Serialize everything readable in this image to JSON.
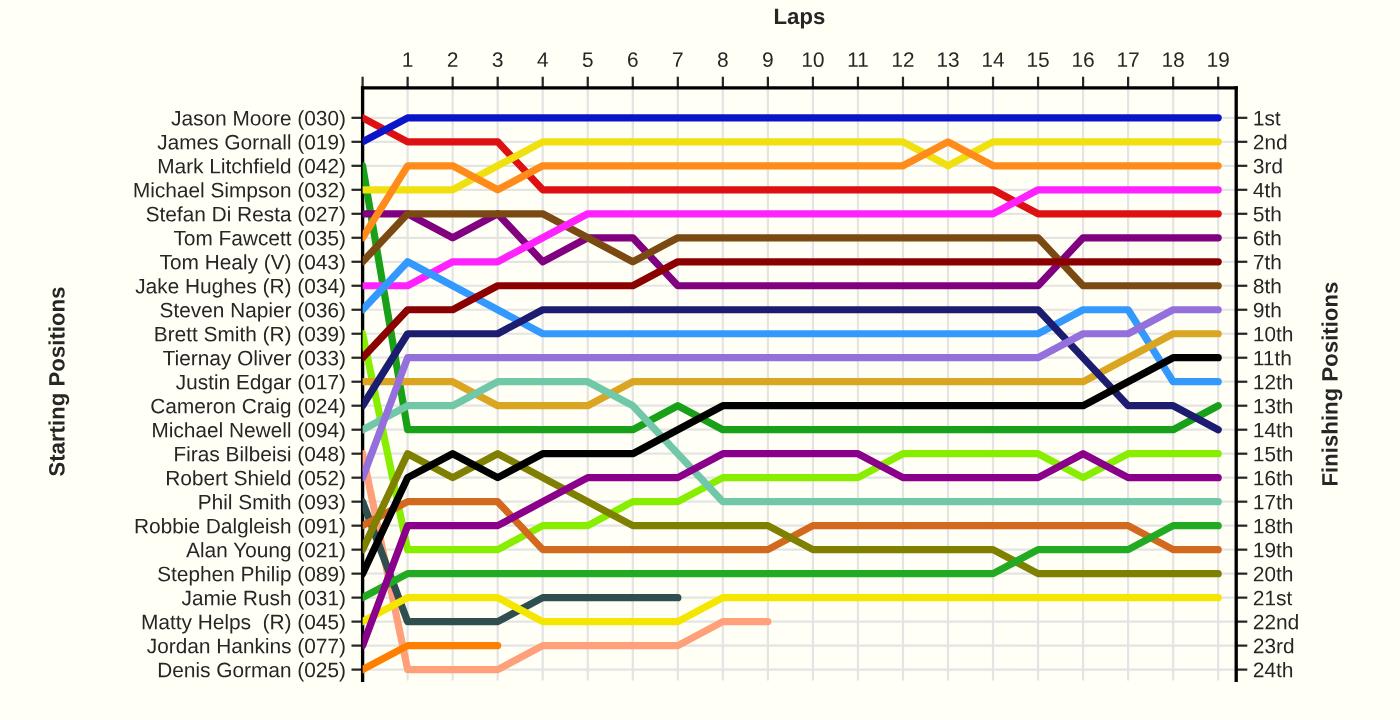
{
  "chart_data": {
    "type": "line",
    "xlabel": "Laps",
    "annotations": [
      "Starting Positions"
    ],
    "y2label": "Finishing Positions",
    "x": [
      0,
      1,
      2,
      3,
      4,
      5,
      6,
      7,
      8,
      9,
      10,
      11,
      12,
      13,
      14,
      15,
      16,
      17,
      18,
      19
    ],
    "xlim": [
      0,
      19.4
    ],
    "xticks": [
      {
        "value": 0,
        "label": null
      },
      1,
      2,
      3,
      4,
      5,
      6,
      7,
      8,
      9,
      10,
      11,
      12,
      13,
      14,
      15,
      16,
      17,
      18,
      19
    ],
    "y_categories": [
      "Jason Moore (030)",
      "James Gornall (019)",
      "Mark Litchfield (042)",
      "Michael Simpson (032)",
      "Stefan Di Resta (027)",
      "Tom Fawcett (035)",
      "Tom Healy (V) (043)",
      "Jake Hughes (R) (034)",
      "Steven Napier (036)",
      "Brett Smith (R) (039)",
      "Tiernay Oliver (033)",
      "Justin Edgar (017)",
      "Cameron Craig (024)",
      "Michael Newell (094)",
      "Firas Bilbeisi (048)",
      "Robert Shield (052)",
      "Phil Smith (093)",
      "Robbie Dalgleish (091)",
      "Alan Young (021)",
      "Stephen Philip (089)",
      "Jamie Rush (031)",
      "Matty Helps  (R) (045)",
      "Jordan Hankins (077)",
      "Denis Gorman (025)"
    ],
    "y2lim": [
      24.45,
      -0.25
    ],
    "y2ticks": [
      {
        "value": 1,
        "label": "1st"
      },
      {
        "value": 2,
        "label": "2nd"
      },
      {
        "value": 3,
        "label": "3rd"
      },
      {
        "value": 4,
        "label": "4th"
      },
      {
        "value": 5,
        "label": "5th"
      },
      {
        "value": 6,
        "label": "6th"
      },
      {
        "value": 7,
        "label": "7th"
      },
      {
        "value": 8,
        "label": "8th"
      },
      {
        "value": 9,
        "label": "9th"
      },
      {
        "value": 10,
        "label": "10th"
      },
      {
        "value": 11,
        "label": "11th"
      },
      {
        "value": 12,
        "label": "12th"
      },
      {
        "value": 13,
        "label": "13th"
      },
      {
        "value": 14,
        "label": "14th"
      },
      {
        "value": 15,
        "label": "15th"
      },
      {
        "value": 16,
        "label": "16th"
      },
      {
        "value": 17,
        "label": "17th"
      },
      {
        "value": 18,
        "label": "18th"
      },
      {
        "value": 19,
        "label": "19th"
      },
      {
        "value": 20,
        "label": "20th"
      },
      {
        "value": 21,
        "label": "21st"
      },
      {
        "value": 22,
        "label": "22nd"
      },
      {
        "value": 23,
        "label": "23rd"
      },
      {
        "value": 24,
        "label": "24th"
      }
    ],
    "grid": true,
    "legend": false,
    "marker": "none",
    "line_style": "solid",
    "series": [
      {
        "axis": "y2",
        "color": "#dd1111",
        "values": [
          1,
          2,
          2,
          2,
          4,
          4,
          4,
          4,
          4,
          4,
          4,
          4,
          4,
          4,
          4,
          5,
          5,
          5,
          5,
          5
        ]
      },
      {
        "axis": "y2",
        "color": "#0a14c8",
        "values": [
          2,
          1,
          1,
          1,
          1,
          1,
          1,
          1,
          1,
          1,
          1,
          1,
          1,
          1,
          1,
          1,
          1,
          1,
          1,
          1
        ]
      },
      {
        "axis": "y2",
        "color": "#18a018",
        "values": [
          3,
          14,
          14,
          14,
          14,
          14,
          14,
          13,
          14,
          14,
          14,
          14,
          14,
          14,
          14,
          14,
          14,
          14,
          14,
          13
        ]
      },
      {
        "axis": "y2",
        "color": "#f0e010",
        "values": [
          4,
          4,
          4,
          3,
          2,
          2,
          2,
          2,
          2,
          2,
          2,
          2,
          2,
          3,
          2,
          2,
          2,
          2,
          2,
          2
        ]
      },
      {
        "axis": "y2",
        "color": "#800080",
        "values": [
          5,
          5,
          6,
          5,
          7,
          6,
          6,
          8,
          8,
          8,
          8,
          8,
          8,
          8,
          8,
          8,
          6,
          6,
          6,
          6
        ]
      },
      {
        "axis": "y2",
        "color": "#ff8c1a",
        "values": [
          6,
          3,
          3,
          4,
          3,
          3,
          3,
          3,
          3,
          3,
          3,
          3,
          3,
          2,
          3,
          3,
          3,
          3,
          3,
          3
        ]
      },
      {
        "axis": "y2",
        "color": "#7b4a12",
        "values": [
          7,
          5,
          5,
          5,
          5,
          6,
          7,
          6,
          6,
          6,
          6,
          6,
          6,
          6,
          6,
          6,
          8,
          8,
          8,
          8
        ]
      },
      {
        "axis": "y2",
        "color": "#ff22ff",
        "values": [
          8,
          8,
          7,
          7,
          6,
          5,
          5,
          5,
          5,
          5,
          5,
          5,
          5,
          5,
          5,
          4,
          4,
          4,
          4,
          4
        ]
      },
      {
        "axis": "y2",
        "color": "#3399ff",
        "values": [
          9,
          7,
          8,
          9,
          10,
          10,
          10,
          10,
          10,
          10,
          10,
          10,
          10,
          10,
          10,
          10,
          9,
          9,
          12,
          12
        ]
      },
      {
        "axis": "y2",
        "color": "#88ee00",
        "values": [
          10,
          19,
          19,
          19,
          18,
          18,
          17,
          17,
          16,
          16,
          16,
          16,
          15,
          15,
          15,
          15,
          16,
          15,
          15,
          15
        ]
      },
      {
        "axis": "y2",
        "color": "#8b0000",
        "values": [
          11,
          9,
          9,
          8,
          8,
          8,
          8,
          7,
          7,
          7,
          7,
          7,
          7,
          7,
          7,
          7,
          7,
          7,
          7,
          7
        ]
      },
      {
        "axis": "y2",
        "color": "#daa520",
        "values": [
          12,
          12,
          12,
          13,
          13,
          13,
          12,
          12,
          12,
          12,
          12,
          12,
          12,
          12,
          12,
          12,
          12,
          11,
          10,
          10
        ]
      },
      {
        "axis": "y2",
        "color": "#1c1c70",
        "values": [
          13,
          10,
          10,
          10,
          9,
          9,
          9,
          9,
          9,
          9,
          9,
          9,
          9,
          9,
          9,
          9,
          11,
          13,
          13,
          14
        ]
      },
      {
        "axis": "y2",
        "color": "#70c8a8",
        "values": [
          14,
          13,
          13,
          12,
          12,
          12,
          13,
          15,
          17,
          17,
          17,
          17,
          17,
          17,
          17,
          17,
          17,
          17,
          17,
          17
        ]
      },
      {
        "axis": "y2",
        "color": "#ffa07a",
        "values": [
          15,
          24,
          24,
          24,
          23,
          23,
          23,
          23,
          22,
          22,
          null,
          null,
          null,
          null,
          null,
          null,
          null,
          null,
          null,
          null
        ]
      },
      {
        "axis": "y2",
        "color": "#9370db",
        "values": [
          16,
          11,
          11,
          11,
          11,
          11,
          11,
          11,
          11,
          11,
          11,
          11,
          11,
          11,
          11,
          11,
          10,
          10,
          9,
          9
        ]
      },
      {
        "axis": "y2",
        "color": "#2f4f4f",
        "values": [
          17,
          22,
          22,
          22,
          21,
          21,
          21,
          21,
          null,
          null,
          null,
          null,
          null,
          null,
          null,
          null,
          null,
          null,
          null,
          null
        ]
      },
      {
        "axis": "y2",
        "color": "#d2691e",
        "values": [
          18,
          17,
          17,
          17,
          19,
          19,
          19,
          19,
          19,
          19,
          18,
          18,
          18,
          18,
          18,
          18,
          18,
          18,
          19,
          19
        ]
      },
      {
        "axis": "y2",
        "color": "#808000",
        "values": [
          19,
          15,
          16,
          15,
          16,
          17,
          18,
          18,
          18,
          18,
          19,
          19,
          19,
          19,
          19,
          20,
          20,
          20,
          20,
          20
        ]
      },
      {
        "axis": "y2",
        "color": "#000000",
        "values": [
          20,
          16,
          15,
          16,
          15,
          15,
          15,
          14,
          13,
          13,
          13,
          13,
          13,
          13,
          13,
          13,
          13,
          12,
          11,
          11
        ]
      },
      {
        "axis": "y2",
        "color": "#22aa22",
        "values": [
          21,
          20,
          20,
          20,
          20,
          20,
          20,
          20,
          20,
          20,
          20,
          20,
          20,
          20,
          20,
          19,
          19,
          19,
          18,
          18
        ]
      },
      {
        "axis": "y2",
        "color": "#f5e600",
        "values": [
          22,
          21,
          21,
          21,
          22,
          22,
          22,
          22,
          21,
          21,
          21,
          21,
          21,
          21,
          21,
          21,
          21,
          21,
          21,
          21
        ]
      },
      {
        "axis": "y2",
        "color": "#8b008b",
        "values": [
          23,
          18,
          18,
          18,
          17,
          16,
          16,
          16,
          15,
          15,
          15,
          15,
          16,
          16,
          16,
          16,
          15,
          16,
          16,
          16
        ]
      },
      {
        "axis": "y2",
        "color": "#ff8000",
        "values": [
          24,
          23,
          23,
          23,
          null,
          null,
          null,
          null,
          null,
          null,
          null,
          null,
          null,
          null,
          null,
          null,
          null,
          null,
          null,
          null
        ]
      }
    ]
  }
}
